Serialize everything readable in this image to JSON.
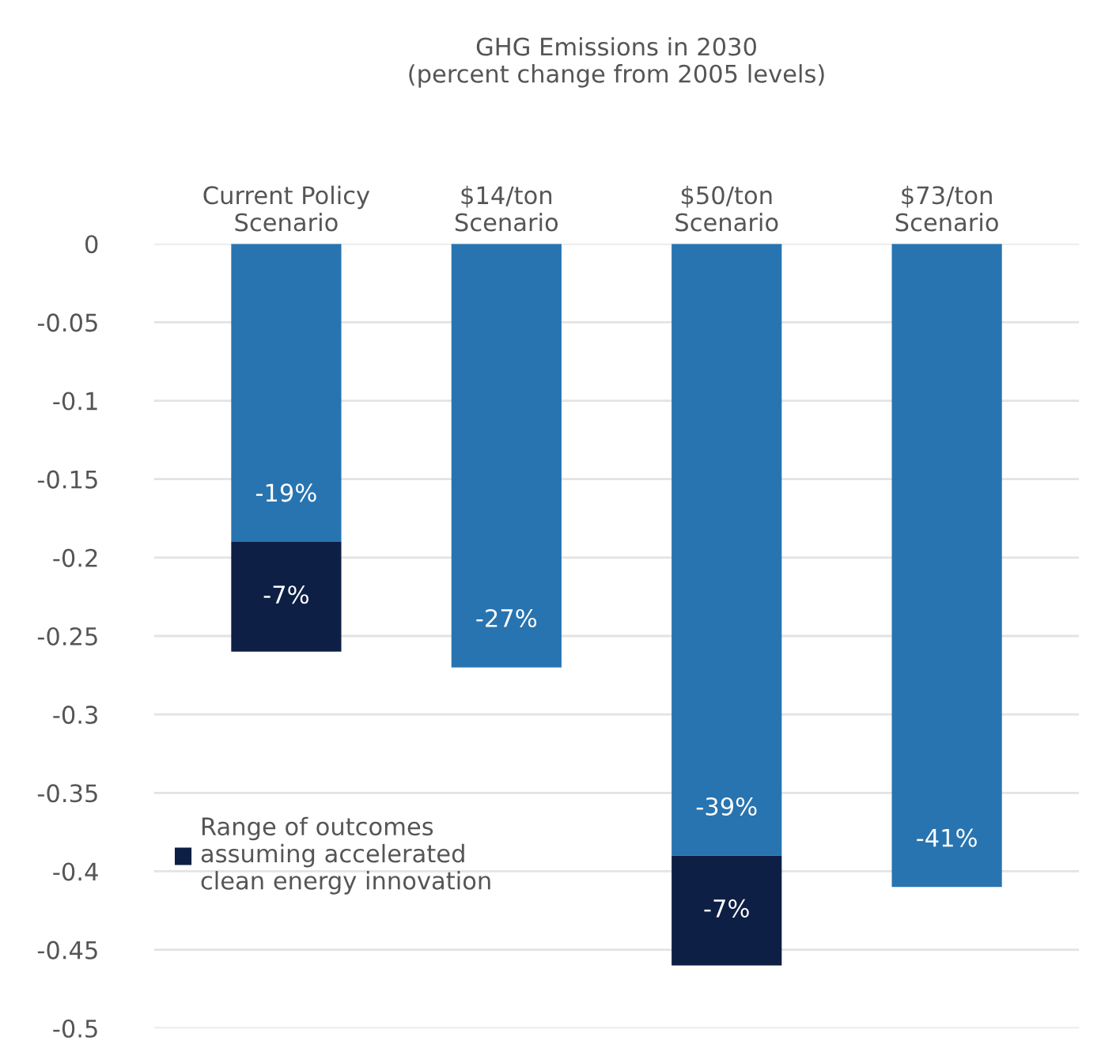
{
  "chart_data": {
    "type": "bar",
    "title": "GHG Emissions in 2030\n(percent change from 2005 levels)",
    "categories": [
      "Current Policy\nScenario",
      "$14/ton\nScenario",
      "$50/ton\nScenario",
      "$73/ton\nScenario"
    ],
    "stacked": true,
    "series": [
      {
        "color": "#2874b0",
        "values": [
          -0.19,
          -0.27,
          -0.39,
          -0.41
        ],
        "value_labels": [
          "-19%",
          "-27%",
          "-39%",
          "-41%"
        ]
      },
      {
        "name": "Range of outcomes\nassuming accelerated\nclean energy innovation",
        "color": "#0e1f45",
        "values": [
          -0.07,
          null,
          -0.07,
          null
        ],
        "value_labels": [
          "-7%",
          null,
          "-7%",
          null
        ]
      }
    ],
    "ylim": [
      -0.5,
      0
    ],
    "yticks": [
      0,
      -0.05,
      -0.1,
      -0.15,
      -0.2,
      -0.25,
      -0.3,
      -0.35,
      -0.4,
      -0.45,
      -0.5
    ],
    "grid": "y",
    "legend": "left"
  }
}
